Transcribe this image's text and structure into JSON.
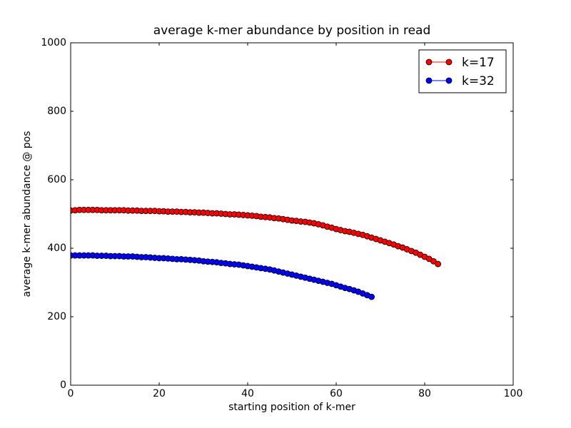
{
  "chart_data": {
    "type": "line",
    "title": "average k-mer abundance by position in read",
    "x_label": "starting position of k-mer",
    "y_label": "average k-mer abundance @ pos",
    "xlim": [
      0,
      100
    ],
    "xticks": [
      0,
      20,
      40,
      60,
      80,
      100
    ],
    "ylim": [
      0,
      1000
    ],
    "yticks": [
      0,
      200,
      400,
      600,
      800,
      1000
    ],
    "grid": false,
    "legend": "upper right",
    "series": [
      {
        "name": "k=17",
        "color": "#ff0000",
        "x": [
          0,
          1,
          2,
          3,
          4,
          5,
          6,
          7,
          8,
          9,
          10,
          11,
          12,
          13,
          14,
          15,
          16,
          17,
          18,
          19,
          20,
          21,
          22,
          23,
          24,
          25,
          26,
          27,
          28,
          29,
          30,
          31,
          32,
          33,
          34,
          35,
          36,
          37,
          38,
          39,
          40,
          41,
          42,
          43,
          44,
          45,
          46,
          47,
          48,
          49,
          50,
          51,
          52,
          53,
          54,
          55,
          56,
          57,
          58,
          59,
          60,
          61,
          62,
          63,
          64,
          65,
          66,
          67,
          68,
          69,
          70,
          71,
          72,
          73,
          74,
          75,
          76,
          77,
          78,
          79,
          80,
          81,
          82,
          83
        ],
        "values": [
          510,
          511,
          512,
          512,
          512,
          512,
          512,
          511,
          511,
          511,
          511,
          511,
          511,
          510,
          510,
          510,
          509,
          509,
          509,
          509,
          508,
          508,
          507,
          507,
          507,
          506,
          506,
          505,
          505,
          504,
          504,
          503,
          502,
          502,
          501,
          500,
          499,
          499,
          498,
          497,
          496,
          495,
          494,
          492,
          491,
          490,
          488,
          487,
          485,
          483,
          481,
          480,
          478,
          477,
          475,
          473,
          470,
          467,
          463,
          460,
          456,
          453,
          450,
          448,
          445,
          442,
          439,
          435,
          431,
          427,
          423,
          419,
          415,
          411,
          406,
          402,
          397,
          392,
          387,
          381,
          375,
          369,
          362,
          354
        ]
      },
      {
        "name": "k=32",
        "color": "#0000ff",
        "x": [
          0,
          1,
          2,
          3,
          4,
          5,
          6,
          7,
          8,
          9,
          10,
          11,
          12,
          13,
          14,
          15,
          16,
          17,
          18,
          19,
          20,
          21,
          22,
          23,
          24,
          25,
          26,
          27,
          28,
          29,
          30,
          31,
          32,
          33,
          34,
          35,
          36,
          37,
          38,
          39,
          40,
          41,
          42,
          43,
          44,
          45,
          46,
          47,
          48,
          49,
          50,
          51,
          52,
          53,
          54,
          55,
          56,
          57,
          58,
          59,
          60,
          61,
          62,
          63,
          64,
          65,
          66,
          67,
          68
        ],
        "values": [
          379,
          379,
          379,
          379,
          379,
          379,
          378,
          378,
          378,
          377,
          377,
          377,
          376,
          376,
          376,
          375,
          374,
          374,
          373,
          372,
          371,
          371,
          370,
          369,
          368,
          368,
          367,
          366,
          365,
          364,
          362,
          361,
          360,
          359,
          357,
          356,
          354,
          353,
          352,
          350,
          348,
          346,
          344,
          342,
          340,
          338,
          335,
          332,
          329,
          326,
          323,
          320,
          317,
          314,
          311,
          308,
          305,
          302,
          299,
          296,
          292,
          288,
          284,
          281,
          277,
          273,
          268,
          263,
          258
        ]
      }
    ]
  }
}
